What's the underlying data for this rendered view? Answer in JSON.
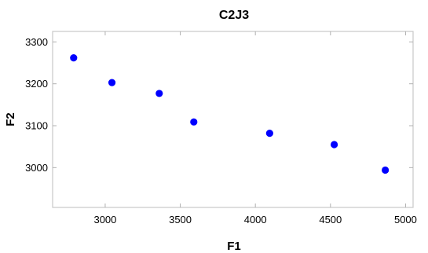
{
  "chart_data": {
    "type": "scatter",
    "title": "C2J3",
    "xlabel": "F1",
    "ylabel": "F2",
    "xlim": [
      2650,
      5050
    ],
    "ylim": [
      2905,
      3325
    ],
    "xticks": [
      3000,
      3500,
      4000,
      4500,
      5000
    ],
    "yticks": [
      3000,
      3100,
      3200,
      3300
    ],
    "grid": false,
    "legend": "none",
    "marker_color": "#0000ff",
    "points": [
      {
        "x": 2790,
        "y": 3262
      },
      {
        "x": 3045,
        "y": 3203
      },
      {
        "x": 3360,
        "y": 3177
      },
      {
        "x": 3590,
        "y": 3109
      },
      {
        "x": 4095,
        "y": 3082
      },
      {
        "x": 4525,
        "y": 3055
      },
      {
        "x": 4865,
        "y": 2994
      }
    ]
  }
}
